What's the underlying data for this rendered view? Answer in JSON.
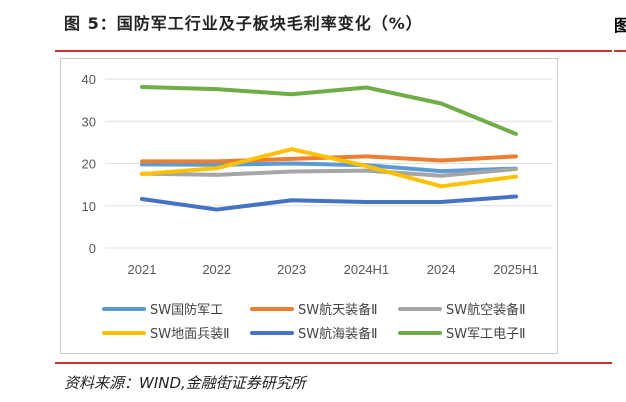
{
  "title": "图 5：国防军工行业及子板块毛利率变化（%）",
  "source": "资料来源：WIND,金融街证券研究所",
  "next_title_fragment": "图",
  "chart_data": {
    "type": "line",
    "title": "图 5：国防军工行业及子板块毛利率变化（%）",
    "categories": [
      "2021",
      "2022",
      "2023",
      "2024H1",
      "2024",
      "2025H1"
    ],
    "ylim": [
      0,
      40
    ],
    "yticks": [
      "0",
      "10",
      "20",
      "30",
      "40"
    ],
    "grid": true,
    "legend_placement": "bottom",
    "series": [
      {
        "name": "SW国防军工",
        "color": "#5B9BD5",
        "values": [
          19.8,
          19.7,
          20.0,
          19.6,
          18.2,
          18.8
        ]
      },
      {
        "name": "SW航天装备Ⅱ",
        "color": "#ED7D31",
        "values": [
          20.5,
          20.5,
          21.1,
          21.7,
          20.7,
          21.7
        ]
      },
      {
        "name": "SW航空装备Ⅱ",
        "color": "#A5A5A5",
        "values": [
          17.6,
          17.3,
          18.1,
          18.3,
          17.1,
          18.7
        ]
      },
      {
        "name": "SW地面兵装Ⅱ",
        "color": "#FFC000",
        "values": [
          17.5,
          18.9,
          23.4,
          19.4,
          14.6,
          16.9
        ]
      },
      {
        "name": "SW航海装备Ⅱ",
        "color": "#4472C4",
        "values": [
          11.6,
          9.1,
          11.3,
          10.9,
          10.9,
          12.2
        ]
      },
      {
        "name": "SW军工电子Ⅱ",
        "color": "#70AD47",
        "values": [
          38.1,
          37.6,
          36.4,
          38.0,
          34.2,
          27.0
        ]
      }
    ]
  }
}
